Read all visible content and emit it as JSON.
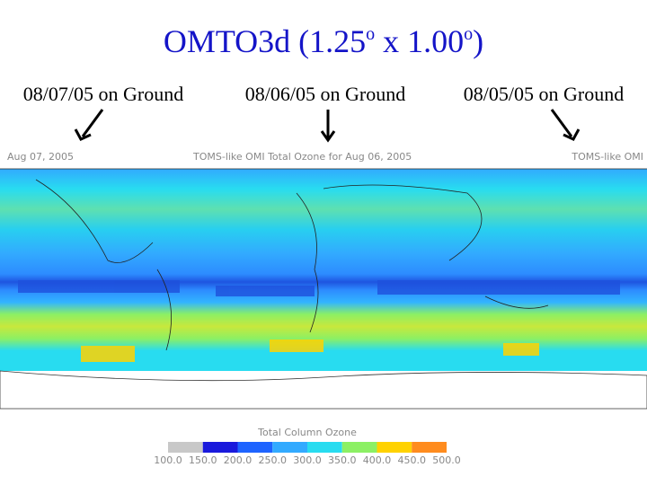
{
  "title": {
    "parts": [
      "OMTO3d (1.25",
      "o",
      " x 1.00",
      "o",
      ")"
    ]
  },
  "labels": [
    "08/07/05 on Ground",
    "08/06/05 on Ground",
    "08/05/05 on Ground"
  ],
  "map": {
    "left_caption": "Aug 07, 2005",
    "center_caption": "TOMS-like OMI Total Ozone for Aug 06, 2005",
    "right_caption": "TOMS-like OMI"
  },
  "colorbar": {
    "title": "Total Column Ozone",
    "colors": [
      "#c8c8c8",
      "#1a1adc",
      "#1e64ff",
      "#32aaff",
      "#28dcf0",
      "#8cf064",
      "#ffd200",
      "#ff8c1e"
    ],
    "labels": [
      "100.0",
      "150.0",
      "200.0",
      "250.0",
      "300.0",
      "350.0",
      "400.0",
      "450.0",
      "500.0"
    ]
  }
}
